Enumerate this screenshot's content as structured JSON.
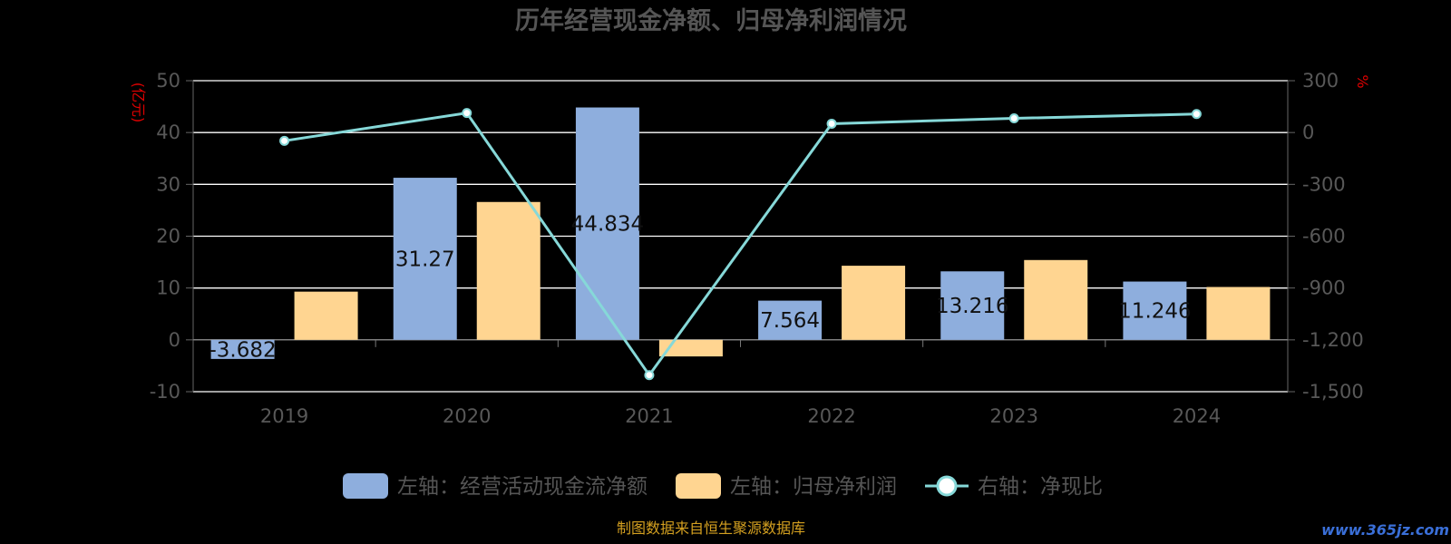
{
  "chart_data": {
    "type": "bar",
    "title": "历年经营现金净额、归母净利润情况",
    "categories": [
      "2019",
      "2020",
      "2021",
      "2022",
      "2023",
      "2024"
    ],
    "left_axis": {
      "unit": "(亿元)",
      "ylim": [
        -10,
        50
      ],
      "ticks": [
        "50",
        "40",
        "30",
        "20",
        "10",
        "0",
        "-10"
      ]
    },
    "right_axis": {
      "unit": "%",
      "ylim": [
        -1500,
        300
      ],
      "ticks": [
        "300",
        "0",
        "-300",
        "-600",
        "-900",
        "-1,200",
        "-1,500"
      ]
    },
    "series": [
      {
        "name": "左轴：经营活动现金流净额",
        "type": "bar",
        "axis": "left",
        "color": "#8eaedd",
        "values": [
          -3.682,
          31.27,
          44.834,
          7.564,
          13.216,
          11.246
        ],
        "labels": [
          "-3.682",
          "31.27",
          "44.834",
          "7.564",
          "13.216",
          "11.246"
        ]
      },
      {
        "name": "左轴：归母净利润",
        "type": "bar",
        "axis": "left",
        "color": "#ffd591",
        "values": [
          9.3,
          26.6,
          -3.2,
          14.3,
          15.4,
          10.2
        ]
      },
      {
        "name": "右轴：净现比",
        "type": "line",
        "axis": "right",
        "color": "#86d8d8",
        "values": [
          -48,
          113,
          -1404,
          51,
          82,
          107
        ]
      }
    ],
    "grid": true,
    "legend_position": "bottom"
  },
  "footer": {
    "source": "制图数据来自恒生聚源数据库",
    "watermark": "www.365jz.com"
  }
}
